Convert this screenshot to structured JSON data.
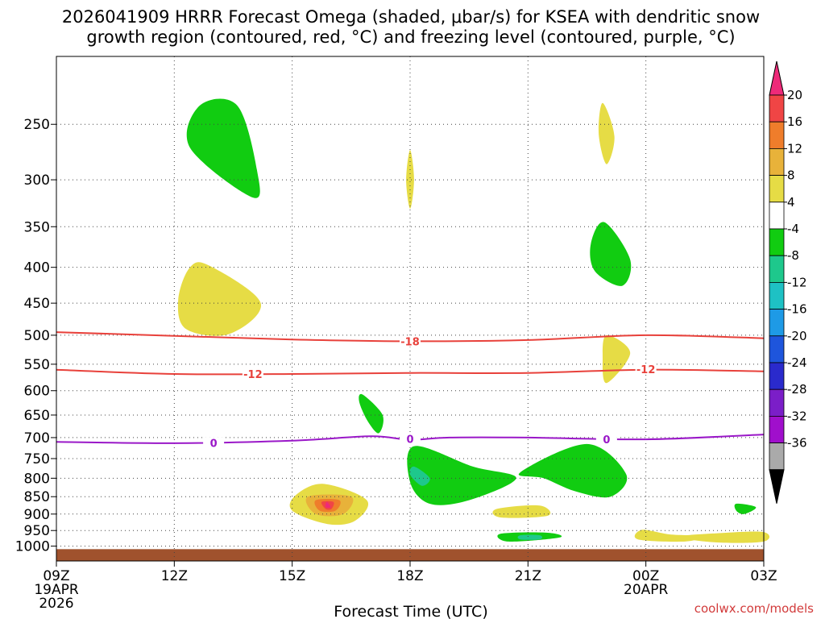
{
  "chart_data": {
    "type": "time-height contour",
    "title_line1": "2026041909 HRRR Forecast Omega (shaded, μbar/s) for KSEA with dendritic snow",
    "title_line2": "growth region (contoured, red, °C) and freezing level (contoured, purple, °C)",
    "xlabel": "Forecast Time (UTC)",
    "ylabel": "",
    "y_scale": "log pressure (hPa), inverted",
    "ylim": [
      200,
      1050
    ],
    "xlim": [
      0,
      18
    ],
    "y_ticks": [
      250,
      300,
      350,
      400,
      450,
      500,
      550,
      600,
      650,
      700,
      750,
      800,
      850,
      900,
      950,
      1000
    ],
    "x_ticks": [
      {
        "hour": 0,
        "label": "09Z",
        "sub1": "19APR",
        "sub2": "2026"
      },
      {
        "hour": 3,
        "label": "12Z"
      },
      {
        "hour": 6,
        "label": "15Z"
      },
      {
        "hour": 9,
        "label": "18Z"
      },
      {
        "hour": 12,
        "label": "21Z"
      },
      {
        "hour": 15,
        "label": "00Z",
        "sub1": "20APR"
      },
      {
        "hour": 18,
        "label": "03Z"
      }
    ],
    "ground_below_hpa": 1010,
    "colorbar": {
      "units": "μbar/s",
      "tick_labels": [
        "20",
        "16",
        "12",
        "8",
        "4",
        "-4",
        "-8",
        "-12",
        "-16",
        "-20",
        "-24",
        "-28",
        "-32",
        "-36"
      ],
      "colors": [
        "#ee2a79",
        "#f04545",
        "#ef7d2b",
        "#e8b23a",
        "#e6dc45",
        "#ffffff",
        "#11cc11",
        "#1ec88c",
        "#1ec1c4",
        "#1e9ae6",
        "#1e55dc",
        "#2a2acc",
        "#7b1ec8",
        "#a00fcc",
        "#aaaaaa",
        "#000000"
      ]
    },
    "contours": [
      {
        "name": "dendritic-top",
        "color": "#e8413b",
        "label": "-18",
        "points": [
          [
            0,
            495
          ],
          [
            3,
            501
          ],
          [
            6,
            507
          ],
          [
            9,
            510
          ],
          [
            12,
            508
          ],
          [
            15,
            500
          ],
          [
            18,
            505
          ]
        ],
        "label_at": [
          9,
          510
        ]
      },
      {
        "name": "dendritic-bottom",
        "color": "#e8413b",
        "label": "-12",
        "points": [
          [
            0,
            560
          ],
          [
            3,
            568
          ],
          [
            6,
            568
          ],
          [
            9,
            566
          ],
          [
            12,
            566
          ],
          [
            15,
            560
          ],
          [
            18,
            563
          ]
        ],
        "label_at": [
          [
            5,
            568
          ],
          [
            15,
            559
          ]
        ]
      },
      {
        "name": "freezing-level",
        "color": "#9a18c8",
        "label": "0",
        "points": [
          [
            0,
            710
          ],
          [
            3,
            713
          ],
          [
            6,
            707
          ],
          [
            8,
            697
          ],
          [
            9,
            705
          ],
          [
            10,
            700
          ],
          [
            12,
            700
          ],
          [
            15,
            704
          ],
          [
            18,
            693
          ]
        ],
        "label_at": [
          [
            4,
            712
          ],
          [
            9,
            703
          ],
          [
            14,
            704
          ]
        ]
      }
    ],
    "omega_regions": [
      {
        "value": -6,
        "color": "#11cc11",
        "points": [
          [
            3.65,
            235
          ],
          [
            4.6,
            235
          ],
          [
            5.1,
            290
          ],
          [
            5.0,
            318
          ],
          [
            3.4,
            270
          ]
        ]
      },
      {
        "value": 6,
        "color": "#e6dc45",
        "points": [
          [
            3.4,
            400
          ],
          [
            3.9,
            398
          ],
          [
            5.2,
            450
          ],
          [
            4.4,
            498
          ],
          [
            3.3,
            490
          ],
          [
            3.1,
            445
          ]
        ]
      },
      {
        "value": 6,
        "color": "#e6dc45",
        "points": [
          [
            9.0,
            272
          ],
          [
            9.1,
            300
          ],
          [
            9.0,
            330
          ],
          [
            8.9,
            300
          ]
        ]
      },
      {
        "value": 6,
        "color": "#e6dc45",
        "points": [
          [
            13.9,
            233
          ],
          [
            14.2,
            260
          ],
          [
            14.0,
            285
          ],
          [
            13.8,
            258
          ]
        ]
      },
      {
        "value": 6,
        "color": "#e6dc45",
        "points": [
          [
            14.0,
            500
          ],
          [
            14.6,
            530
          ],
          [
            14.0,
            585
          ],
          [
            13.9,
            540
          ]
        ]
      },
      {
        "value": -6,
        "color": "#11cc11",
        "points": [
          [
            13.95,
            345
          ],
          [
            14.6,
            390
          ],
          [
            14.4,
            425
          ],
          [
            13.7,
            405
          ],
          [
            13.6,
            370
          ]
        ]
      },
      {
        "value": -6,
        "color": "#11cc11",
        "points": [
          [
            7.8,
            608
          ],
          [
            8.3,
            650
          ],
          [
            8.2,
            690
          ],
          [
            7.9,
            660
          ],
          [
            7.7,
            620
          ]
        ]
      },
      {
        "value": -6,
        "color": "#11cc11",
        "points": [
          [
            9.1,
            720
          ],
          [
            10.6,
            770
          ],
          [
            11.7,
            800
          ],
          [
            10.5,
            860
          ],
          [
            9.5,
            870
          ],
          [
            9.0,
            810
          ]
        ]
      },
      {
        "value": -10,
        "color": "#1ec88c",
        "points": [
          [
            9.1,
            770
          ],
          [
            9.5,
            800
          ],
          [
            9.3,
            820
          ],
          [
            9.0,
            790
          ]
        ]
      },
      {
        "value": -6,
        "color": "#11cc11",
        "points": [
          [
            11.8,
            785
          ],
          [
            13.5,
            715
          ],
          [
            14.5,
            790
          ],
          [
            14.1,
            850
          ],
          [
            13.2,
            835
          ],
          [
            12.4,
            800
          ]
        ]
      },
      {
        "value": 6,
        "color": "#e6dc45",
        "points": [
          [
            6.1,
            845
          ],
          [
            6.8,
            815
          ],
          [
            7.9,
            860
          ],
          [
            7.6,
            920
          ],
          [
            6.9,
            930
          ],
          [
            6.0,
            890
          ]
        ]
      },
      {
        "value": 10,
        "color": "#e8b23a",
        "points": [
          [
            6.4,
            850
          ],
          [
            7.5,
            850
          ],
          [
            7.3,
            900
          ],
          [
            6.6,
            900
          ]
        ]
      },
      {
        "value": 14,
        "color": "#ef7d2b",
        "points": [
          [
            6.6,
            860
          ],
          [
            7.2,
            860
          ],
          [
            7.1,
            890
          ],
          [
            6.7,
            890
          ]
        ]
      },
      {
        "value": 18,
        "color": "#f04545",
        "points": [
          [
            6.75,
            865
          ],
          [
            7.05,
            865
          ],
          [
            7.0,
            885
          ],
          [
            6.85,
            885
          ]
        ]
      },
      {
        "value": 22,
        "color": "#ee2a79",
        "points": [
          [
            6.88,
            865
          ],
          [
            6.98,
            880
          ],
          [
            6.85,
            880
          ]
        ]
      },
      {
        "value": 6,
        "color": "#e6dc45",
        "points": [
          [
            11.2,
            885
          ],
          [
            12.3,
            875
          ],
          [
            12.5,
            905
          ],
          [
            11.3,
            910
          ]
        ]
      },
      {
        "value": -6,
        "color": "#11cc11",
        "points": [
          [
            11.3,
            960
          ],
          [
            12.5,
            957
          ],
          [
            12.8,
            972
          ],
          [
            11.5,
            985
          ]
        ]
      },
      {
        "value": -10,
        "color": "#1ec88c",
        "points": [
          [
            11.8,
            965
          ],
          [
            12.3,
            965
          ],
          [
            12.3,
            978
          ],
          [
            11.8,
            978
          ]
        ]
      },
      {
        "value": -6,
        "color": "#11cc11",
        "points": [
          [
            17.3,
            870
          ],
          [
            17.8,
            880
          ],
          [
            17.5,
            900
          ],
          [
            17.3,
            890
          ]
        ]
      },
      {
        "value": 6,
        "color": "#e6dc45",
        "points": [
          [
            14.9,
            948
          ],
          [
            15.6,
            962
          ],
          [
            16.4,
            968
          ],
          [
            16.0,
            985
          ],
          [
            14.8,
            978
          ]
        ]
      },
      {
        "value": 6,
        "color": "#e6dc45",
        "points": [
          [
            15.8,
            970
          ],
          [
            16.9,
            958
          ],
          [
            18.0,
            955
          ],
          [
            18.0,
            985
          ],
          [
            16.8,
            988
          ]
        ]
      }
    ]
  },
  "credit": "coolwx.com/models"
}
